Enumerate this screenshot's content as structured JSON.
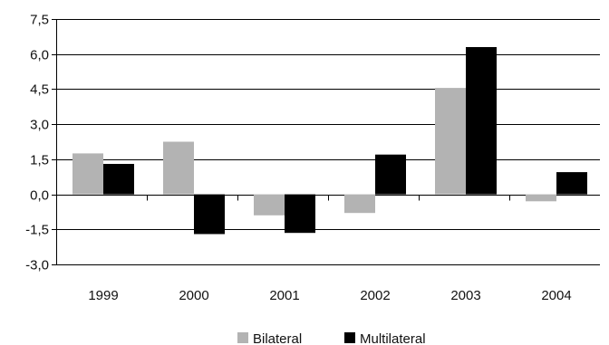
{
  "chart_data": {
    "type": "bar",
    "categories": [
      "1999",
      "2000",
      "2001",
      "2002",
      "2003",
      "2004"
    ],
    "series": [
      {
        "name": "Bilateral",
        "color": "#b3b3b3",
        "values": [
          1.75,
          2.25,
          -0.9,
          -0.8,
          4.55,
          -0.3
        ]
      },
      {
        "name": "Multilateral",
        "color": "#000000",
        "values": [
          1.3,
          -1.7,
          -1.65,
          1.7,
          6.3,
          0.95
        ]
      }
    ],
    "y_ticks": [
      "7,5",
      "6,0",
      "4,5",
      "3,0",
      "1,5",
      "0,0",
      "-1,5",
      "-3,0"
    ],
    "ylim": [
      -3.0,
      7.5
    ],
    "grid": true,
    "legend_position": "bottom"
  }
}
